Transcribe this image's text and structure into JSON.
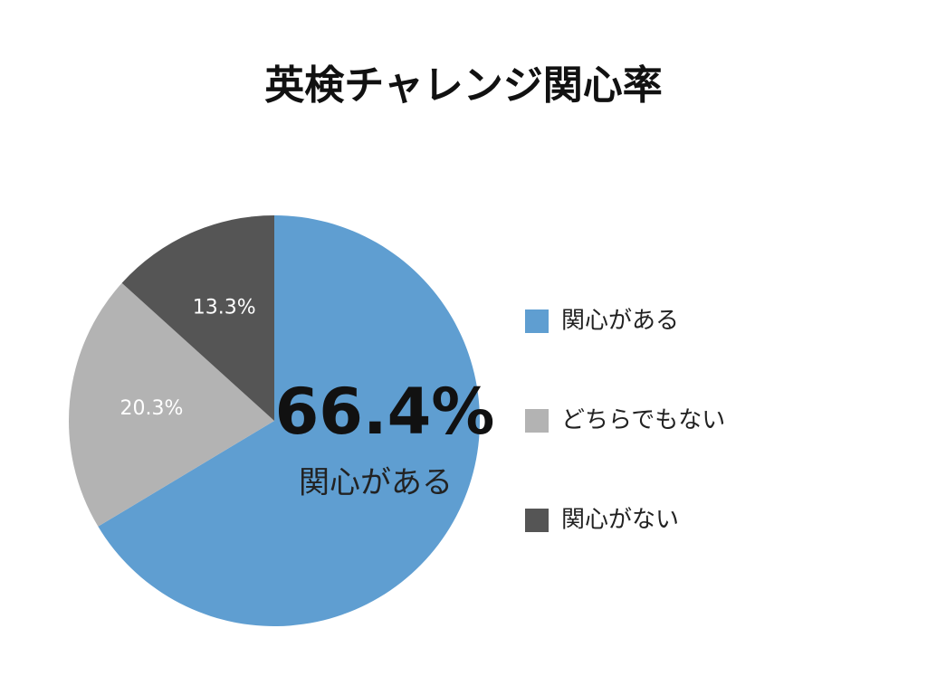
{
  "chart_data": {
    "type": "pie",
    "title": "英検チャレンジ関心率",
    "categories": [
      "関心がある",
      "どちらでもない",
      "関心がない"
    ],
    "values": [
      66.4,
      20.3,
      13.3
    ],
    "value_labels": [
      "66.4%",
      "20.3%",
      "13.3%"
    ],
    "colors": [
      "#5f9ed1",
      "#b3b3b3",
      "#555555"
    ],
    "legend": "right"
  }
}
